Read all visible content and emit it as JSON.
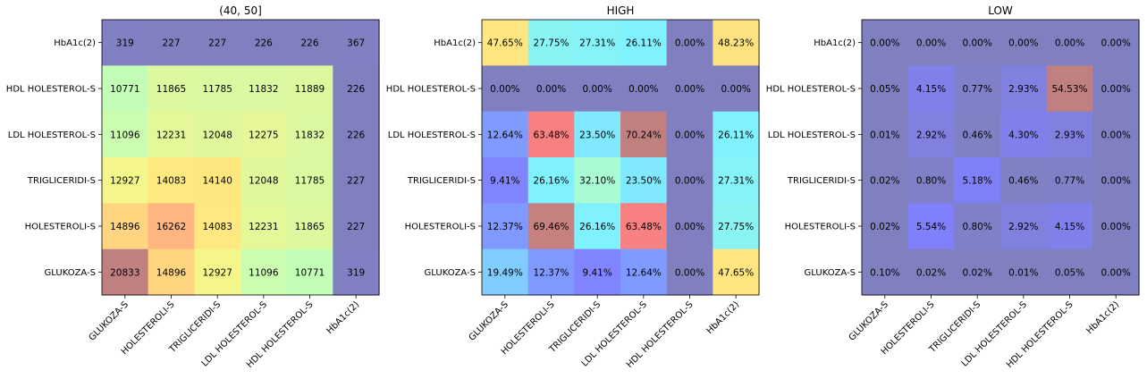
{
  "chart_data": [
    {
      "type": "heatmap",
      "title": "(40, 50]",
      "x_labels": [
        "GLUKOZA-S",
        "HOLESTEROLI-S",
        "TRIGLICERIDI-S",
        "LDL HOLESTEROL-S",
        "HDL HOLESTEROL-S",
        "HbA1c(2)"
      ],
      "y_labels": [
        "HbA1c(2)",
        "HDL HOLESTEROL-S",
        "LDL HOLESTEROL-S",
        "TRIGLICERIDI-S",
        "HOLESTEROLI-S",
        "GLUKOZA-S"
      ],
      "values": [
        [
          319,
          227,
          227,
          226,
          226,
          367
        ],
        [
          10771,
          11865,
          11785,
          11832,
          11889,
          226
        ],
        [
          11096,
          12231,
          12048,
          12275,
          11832,
          226
        ],
        [
          12927,
          14083,
          14140,
          12048,
          11785,
          227
        ],
        [
          14896,
          16262,
          14083,
          12231,
          11865,
          227
        ],
        [
          20833,
          14896,
          12927,
          11096,
          10771,
          319
        ]
      ],
      "value_format": "int",
      "vmin": 226,
      "vmax": 20833
    },
    {
      "type": "heatmap",
      "title": "HIGH",
      "x_labels": [
        "GLUKOZA-S",
        "HOLESTEROLI-S",
        "TRIGLICERIDI-S",
        "LDL HOLESTEROL-S",
        "HDL HOLESTEROL-S",
        "HbA1c(2)"
      ],
      "y_labels": [
        "HbA1c(2)",
        "HDL HOLESTEROL-S",
        "LDL HOLESTEROL-S",
        "TRIGLICERIDI-S",
        "HOLESTEROLI-S",
        "GLUKOZA-S"
      ],
      "values": [
        [
          47.65,
          27.75,
          27.31,
          26.11,
          0.0,
          48.23
        ],
        [
          0.0,
          0.0,
          0.0,
          0.0,
          0.0,
          0.0
        ],
        [
          12.64,
          63.48,
          23.5,
          70.24,
          0.0,
          26.11
        ],
        [
          9.41,
          26.16,
          32.1,
          23.5,
          0.0,
          27.31
        ],
        [
          12.37,
          69.46,
          26.16,
          63.48,
          0.0,
          27.75
        ],
        [
          19.49,
          12.37,
          9.41,
          12.64,
          0.0,
          47.65
        ]
      ],
      "value_format": "pct",
      "vmin": 0,
      "vmax": 70.24
    },
    {
      "type": "heatmap",
      "title": "LOW",
      "x_labels": [
        "GLUKOZA-S",
        "HOLESTEROLI-S",
        "TRIGLICERIDI-S",
        "LDL HOLESTEROL-S",
        "HDL HOLESTEROL-S",
        "HbA1c(2)"
      ],
      "y_labels": [
        "HbA1c(2)",
        "HDL HOLESTEROL-S",
        "LDL HOLESTEROL-S",
        "TRIGLICERIDI-S",
        "HOLESTEROLI-S",
        "GLUKOZA-S"
      ],
      "values": [
        [
          0.0,
          0.0,
          0.0,
          0.0,
          0.0,
          0.0
        ],
        [
          0.05,
          4.15,
          0.77,
          2.93,
          54.53,
          0.0
        ],
        [
          0.01,
          2.92,
          0.46,
          4.3,
          2.93,
          0.0
        ],
        [
          0.02,
          0.8,
          5.18,
          0.46,
          0.77,
          0.0
        ],
        [
          0.02,
          5.54,
          0.8,
          2.92,
          4.15,
          0.0
        ],
        [
          0.1,
          0.02,
          0.02,
          0.01,
          0.05,
          0.0
        ]
      ],
      "value_format": "pct",
      "vmin": 0,
      "vmax": 54.53
    }
  ]
}
